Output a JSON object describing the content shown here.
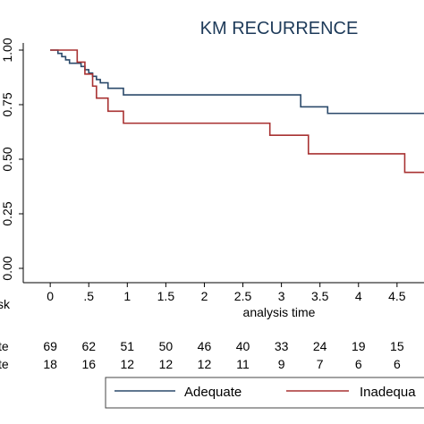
{
  "chart_data": {
    "type": "line",
    "title": "KM RECURRENCE",
    "xlabel": "analysis time",
    "ylabel": "",
    "xlim": [
      -0.35,
      4.85
    ],
    "ylim": [
      0,
      1
    ],
    "x_ticks": [
      0,
      0.5,
      1,
      1.5,
      2,
      2.5,
      3,
      3.5,
      4,
      4.5
    ],
    "x_tick_labels": [
      "0",
      ".5",
      "1",
      "1.5",
      "2",
      "2.5",
      "3",
      "3.5",
      "4",
      "4.5"
    ],
    "y_ticks": [
      0,
      0.25,
      0.5,
      0.75,
      1
    ],
    "y_tick_labels": [
      "0.00",
      "0.25",
      "0.50",
      "0.75",
      "1.00"
    ],
    "grid": false,
    "legend_position": "bottom",
    "series": [
      {
        "name": "Adequate",
        "color": "#2b4a6b",
        "x": [
          0,
          0.1,
          0.15,
          0.2,
          0.25,
          0.4,
          0.45,
          0.5,
          0.55,
          0.6,
          0.65,
          0.75,
          0.95,
          3.25,
          3.6,
          4.85
        ],
        "y": [
          1.0,
          0.985,
          0.97,
          0.955,
          0.94,
          0.925,
          0.91,
          0.895,
          0.88,
          0.865,
          0.85,
          0.825,
          0.795,
          0.74,
          0.71,
          0.71
        ]
      },
      {
        "name": "Inadequate",
        "color": "#a83232",
        "x": [
          0,
          0.35,
          0.45,
          0.55,
          0.6,
          0.75,
          0.95,
          2.85,
          3.35,
          4.6,
          4.85
        ],
        "y": [
          1.0,
          0.945,
          0.89,
          0.835,
          0.78,
          0.72,
          0.665,
          0.61,
          0.525,
          0.44,
          0.44
        ]
      }
    ]
  },
  "risk_table": {
    "header_label": "sk",
    "rows": [
      {
        "label": "te",
        "values": [
          "69",
          "62",
          "51",
          "50",
          "46",
          "40",
          "33",
          "24",
          "19",
          "15"
        ]
      },
      {
        "label": "te",
        "values": [
          "18",
          "16",
          "12",
          "12",
          "12",
          "11",
          "9",
          "7",
          "6",
          "6"
        ]
      }
    ]
  },
  "legend": {
    "items": [
      {
        "label": "Adequate",
        "color": "#2b4a6b"
      },
      {
        "label": "Inadequa",
        "color": "#a83232"
      }
    ]
  }
}
